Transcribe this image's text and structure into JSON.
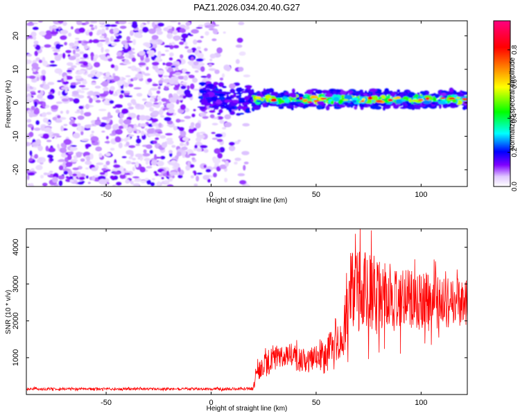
{
  "chart_data": [
    {
      "type": "heatmap",
      "title": "PAZ1.2026.034.20.40.G27",
      "xlabel": "Height of straight line (km)",
      "ylabel": "Frequency (Hz)",
      "xlim": [
        -88,
        122
      ],
      "ylim": [
        -25,
        24.5
      ],
      "xticks": [
        -50,
        0,
        50,
        100
      ],
      "yticks": [
        -20,
        -10,
        0,
        10,
        20
      ],
      "colorbar": {
        "label": "Normalized spectral amplitude",
        "range": [
          0,
          0.97
        ],
        "ticks": [
          0.0,
          0.2,
          0.4,
          0.6,
          0.8
        ],
        "colormap": [
          "#ffffff",
          "#c080ff",
          "#6000e0",
          "#0000ff",
          "#00ffff",
          "#00ff00",
          "#ffff00",
          "#ff8000",
          "#ff0000",
          "#ff0080"
        ]
      },
      "regions": [
        {
          "description": "scattered noise",
          "x_range": [
            -88,
            17
          ],
          "y_range": [
            -25,
            24.5
          ],
          "amplitude": [
            0.02,
            0.15
          ]
        },
        {
          "description": "signal band",
          "x_range": [
            -5,
            122
          ],
          "center_frequency_hz": 1,
          "band_halfwidth_hz": 3,
          "amplitude": [
            0.1,
            0.95
          ]
        }
      ]
    },
    {
      "type": "line",
      "xlabel": "Height of straight line (km)",
      "ylabel": "SNR (10 * v/v)",
      "xlim": [
        -88,
        122
      ],
      "ylim": [
        0,
        4500
      ],
      "xticks": [
        -50,
        0,
        50,
        100
      ],
      "yticks": [
        1000,
        2000,
        3000,
        4000
      ],
      "series": [
        {
          "name": "SNR",
          "color": "#ff0000",
          "envelope": [
            {
              "x": -88,
              "y": 150,
              "spread": 50
            },
            {
              "x": 0,
              "y": 150,
              "spread": 50
            },
            {
              "x": 20,
              "y": 160,
              "spread": 60
            },
            {
              "x": 22,
              "y": 700,
              "spread": 500
            },
            {
              "x": 35,
              "y": 1100,
              "spread": 500
            },
            {
              "x": 45,
              "y": 900,
              "spread": 500
            },
            {
              "x": 55,
              "y": 1200,
              "spread": 600
            },
            {
              "x": 63,
              "y": 1500,
              "spread": 700
            },
            {
              "x": 65,
              "y": 2700,
              "spread": 1700
            },
            {
              "x": 75,
              "y": 2800,
              "spread": 1600
            },
            {
              "x": 90,
              "y": 2600,
              "spread": 1300
            },
            {
              "x": 110,
              "y": 2500,
              "spread": 1000
            },
            {
              "x": 122,
              "y": 2500,
              "spread": 900
            }
          ]
        }
      ]
    }
  ]
}
